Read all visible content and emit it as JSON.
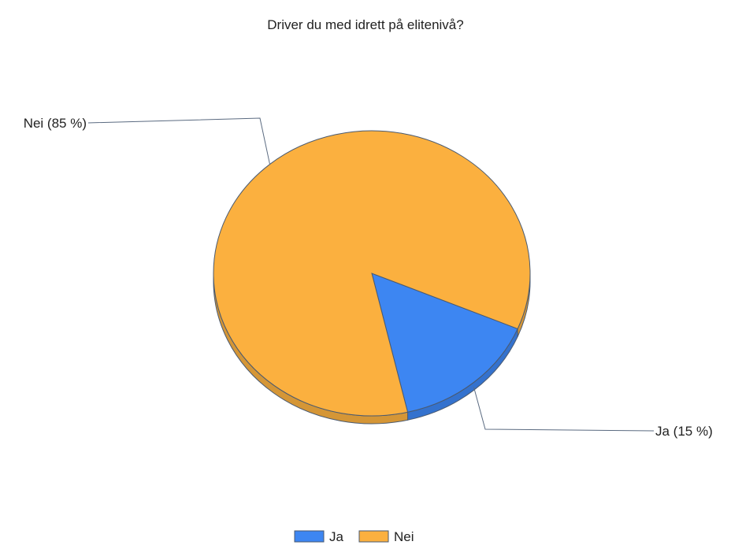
{
  "chart_data": {
    "type": "pie",
    "title": "Driver du med idrett på elitenivå?",
    "slices": [
      {
        "label": "Ja",
        "value": 15,
        "display_label": "Ja (15 %)",
        "color": "#3d86f2"
      },
      {
        "label": "Nei",
        "value": 85,
        "display_label": "Nei (85 %)",
        "color": "#fbb03f"
      }
    ],
    "legend": {
      "placement": "bottom-center",
      "items": [
        "Ja",
        "Nei"
      ]
    }
  }
}
